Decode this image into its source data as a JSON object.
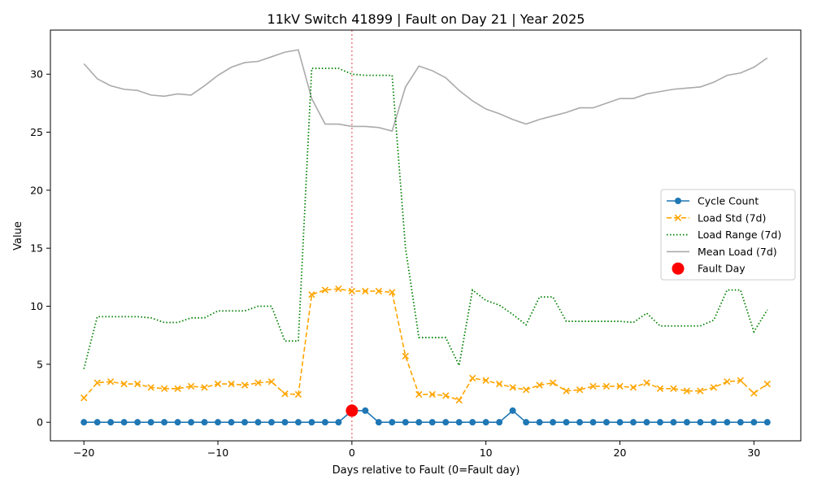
{
  "chart_data": {
    "type": "line",
    "title": "11kV Switch 41899 | Fault on Day 21 | Year 2025",
    "xlabel": "Days relative to Fault (0=Fault day)",
    "ylabel": "Value",
    "xlim": [
      -22.5,
      33.5
    ],
    "ylim": [
      -1.6,
      33.8
    ],
    "xticks": [
      -20,
      -10,
      0,
      10,
      20,
      30
    ],
    "yticks": [
      0,
      5,
      10,
      15,
      20,
      25,
      30
    ],
    "grid": false,
    "legend_position": "center-right",
    "fault_line_x": 0,
    "x": [
      -20,
      -19,
      -18,
      -17,
      -16,
      -15,
      -14,
      -13,
      -12,
      -11,
      -10,
      -9,
      -8,
      -7,
      -6,
      -5,
      -4,
      -3,
      -2,
      -1,
      0,
      1,
      2,
      3,
      4,
      5,
      6,
      7,
      8,
      9,
      10,
      11,
      12,
      13,
      14,
      15,
      16,
      17,
      18,
      19,
      20,
      21,
      22,
      23,
      24,
      25,
      26,
      27,
      28,
      29,
      30,
      31
    ],
    "series": [
      {
        "name": "Cycle Count",
        "color": "#1f77b4",
        "style": "solid",
        "marker": "circle",
        "values": [
          0,
          0,
          0,
          0,
          0,
          0,
          0,
          0,
          0,
          0,
          0,
          0,
          0,
          0,
          0,
          0,
          0,
          0,
          0,
          0,
          1,
          1,
          0,
          0,
          0,
          0,
          0,
          0,
          0,
          0,
          0,
          0,
          1,
          0,
          0,
          0,
          0,
          0,
          0,
          0,
          0,
          0,
          0,
          0,
          0,
          0,
          0,
          0,
          0,
          0,
          0,
          0
        ]
      },
      {
        "name": "Load Std (7d)",
        "color": "#ffa500",
        "style": "dashed",
        "marker": "x",
        "values": [
          2.1,
          3.4,
          3.5,
          3.3,
          3.3,
          3.0,
          2.9,
          2.9,
          3.1,
          3.0,
          3.3,
          3.3,
          3.2,
          3.4,
          3.5,
          2.45,
          2.4,
          11.0,
          11.4,
          11.5,
          11.3,
          11.3,
          11.3,
          11.2,
          5.7,
          2.4,
          2.4,
          2.3,
          1.9,
          3.8,
          3.6,
          3.3,
          3.0,
          2.8,
          3.2,
          3.4,
          2.7,
          2.8,
          3.1,
          3.1,
          3.1,
          3.0,
          3.4,
          2.9,
          2.9,
          2.7,
          2.7,
          3.0,
          3.5,
          3.6,
          2.5,
          3.3
        ]
      },
      {
        "name": "Load Range (7d)",
        "color": "#008000",
        "style": "dotted",
        "marker": "none",
        "values": [
          4.6,
          9.1,
          9.1,
          9.1,
          9.1,
          9.0,
          8.6,
          8.6,
          9.0,
          9.0,
          9.6,
          9.6,
          9.6,
          10.0,
          10.0,
          7.0,
          7.0,
          30.5,
          30.5,
          30.5,
          30.0,
          29.9,
          29.9,
          29.9,
          15.0,
          7.3,
          7.3,
          7.3,
          4.9,
          11.4,
          10.5,
          10.1,
          9.3,
          8.4,
          10.8,
          10.8,
          8.7,
          8.7,
          8.7,
          8.7,
          8.7,
          8.6,
          9.4,
          8.3,
          8.3,
          8.3,
          8.3,
          8.8,
          11.4,
          11.4,
          7.8,
          9.7
        ]
      },
      {
        "name": "Mean Load (7d)",
        "color": "#aaaaaa",
        "style": "solid",
        "marker": "none",
        "values": [
          30.9,
          29.6,
          29.0,
          28.7,
          28.6,
          28.2,
          28.1,
          28.3,
          28.2,
          29.0,
          29.9,
          30.6,
          31.0,
          31.1,
          31.5,
          31.9,
          32.1,
          27.9,
          25.7,
          25.7,
          25.5,
          25.5,
          25.4,
          25.1,
          28.9,
          30.7,
          30.3,
          29.7,
          28.6,
          27.7,
          27.0,
          26.6,
          26.1,
          25.7,
          26.1,
          26.4,
          26.7,
          27.1,
          27.1,
          27.5,
          27.9,
          27.9,
          28.3,
          28.5,
          28.7,
          28.8,
          28.9,
          29.3,
          29.9,
          30.1,
          30.6,
          31.4
        ]
      }
    ],
    "fault_point": {
      "name": "Fault Day",
      "x": 0,
      "y": 1,
      "color": "#ff0000"
    }
  }
}
